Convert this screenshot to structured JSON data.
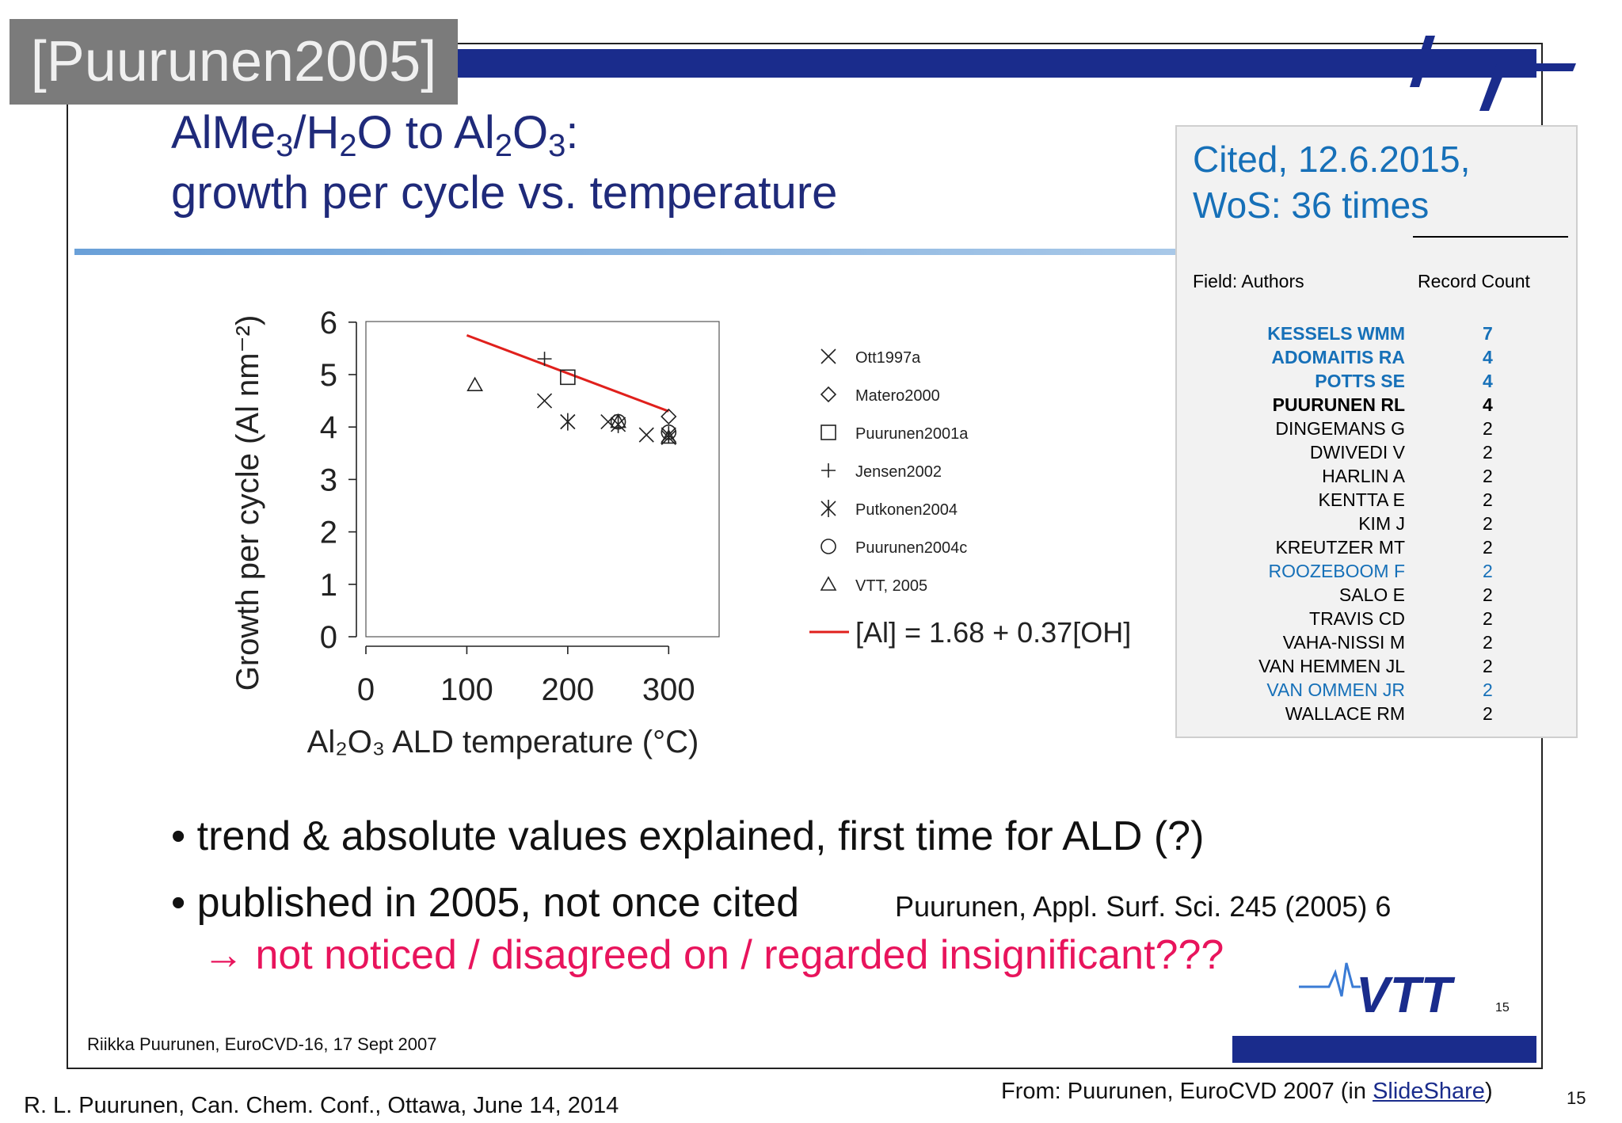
{
  "tag_label": "[Puurunen2005]",
  "slide": {
    "title_line1_parts": [
      "AlMe",
      "3",
      "/H",
      "2",
      "O to Al",
      "2",
      "O",
      "3",
      ":"
    ],
    "title_line2": "growth per cycle vs. temperature",
    "bullets": [
      "• trend & absolute values explained, first time for ALD (?)",
      "• published in 2005, not once cited"
    ],
    "reference": "Puurunen, Appl. Surf. Sci. 245 (2005) 6",
    "conclusion": "→ not noticed / disagreed on / regarded insignificant???",
    "footer": "Riikka Puurunen, EuroCVD-16, 17 Sept 2007",
    "page_number": "15",
    "logo_text": "VTT"
  },
  "citations": {
    "heading_line1": "Cited, 12.6.2015,",
    "heading_line2": "WoS: 36 times",
    "col_field": "Field: Authors",
    "col_count": "Record Count",
    "rows": [
      {
        "name": "KESSELS WMM",
        "count": "7",
        "style": "blue-bold"
      },
      {
        "name": "ADOMAITIS RA",
        "count": "4",
        "style": "blue-bold"
      },
      {
        "name": "POTTS SE",
        "count": "4",
        "style": "blue-bold"
      },
      {
        "name": "PUURUNEN RL",
        "count": "4",
        "style": "black-bold"
      },
      {
        "name": "DINGEMANS G",
        "count": "2",
        "style": "black"
      },
      {
        "name": "DWIVEDI V",
        "count": "2",
        "style": "black"
      },
      {
        "name": "HARLIN A",
        "count": "2",
        "style": "black"
      },
      {
        "name": "KENTTA E",
        "count": "2",
        "style": "black"
      },
      {
        "name": "KIM J",
        "count": "2",
        "style": "black"
      },
      {
        "name": "KREUTZER MT",
        "count": "2",
        "style": "black"
      },
      {
        "name": "ROOZEBOOM F",
        "count": "2",
        "style": "blue"
      },
      {
        "name": "SALO E",
        "count": "2",
        "style": "black"
      },
      {
        "name": "TRAVIS CD",
        "count": "2",
        "style": "black"
      },
      {
        "name": "VAHA-NISSI M",
        "count": "2",
        "style": "black"
      },
      {
        "name": "VAN HEMMEN JL",
        "count": "2",
        "style": "black"
      },
      {
        "name": "VAN OMMEN JR",
        "count": "2",
        "style": "blue"
      },
      {
        "name": "WALLACE RM",
        "count": "2",
        "style": "black"
      }
    ]
  },
  "chart_data": {
    "type": "scatter",
    "xlabel": "Al₂O₃ ALD temperature (°C)",
    "ylabel": "Growth per cycle (Al nm⁻²)",
    "xlim": [
      0,
      350
    ],
    "ylim": [
      0,
      6
    ],
    "xticks": [
      0,
      100,
      200,
      300
    ],
    "yticks": [
      0,
      1,
      2,
      3,
      4,
      5,
      6
    ],
    "series": [
      {
        "name": "Ott1997a",
        "marker": "x",
        "points": [
          [
            177,
            4.5
          ],
          [
            200,
            4.1
          ],
          [
            240,
            4.1
          ],
          [
            278,
            3.85
          ],
          [
            300,
            3.8
          ]
        ]
      },
      {
        "name": "Matero2000",
        "marker": "diamond",
        "points": [
          [
            300,
            4.2
          ]
        ]
      },
      {
        "name": "Puurunen2001a",
        "marker": "square",
        "points": [
          [
            200,
            4.95
          ]
        ]
      },
      {
        "name": "Jensen2002",
        "marker": "plus",
        "points": [
          [
            177,
            5.3
          ]
        ]
      },
      {
        "name": "Putkonen2004",
        "marker": "star",
        "points": [
          [
            200,
            4.1
          ],
          [
            250,
            4.05
          ],
          [
            300,
            3.85
          ]
        ]
      },
      {
        "name": "Puurunen2004c",
        "marker": "circle",
        "points": [
          [
            250,
            4.1
          ],
          [
            300,
            3.9
          ]
        ]
      },
      {
        "name": "VTT, 2005",
        "marker": "triangle",
        "points": [
          [
            108,
            4.8
          ],
          [
            250,
            4.1
          ],
          [
            300,
            3.8
          ]
        ]
      }
    ],
    "fit_line": {
      "label": "[Al] = 1.68 + 0.37[OH]",
      "color": "#e0201c",
      "points": [
        [
          100,
          5.75
        ],
        [
          300,
          4.3
        ]
      ]
    }
  },
  "footer": {
    "left": "R. L. Puurunen, Can. Chem. Conf., Ottawa, June 14, 2014",
    "right_prefix": "From: Puurunen, EuroCVD 2007 (in ",
    "right_link": "SlideShare",
    "right_suffix": ")",
    "page_number": "15"
  },
  "colors": {
    "navy": "#1a2c8c",
    "title_blue": "#1f2a7a",
    "cite_blue": "#1670b8",
    "accent_pink": "#e8145c",
    "fit_red": "#e0201c",
    "tag_gray": "#7b7b7b"
  }
}
